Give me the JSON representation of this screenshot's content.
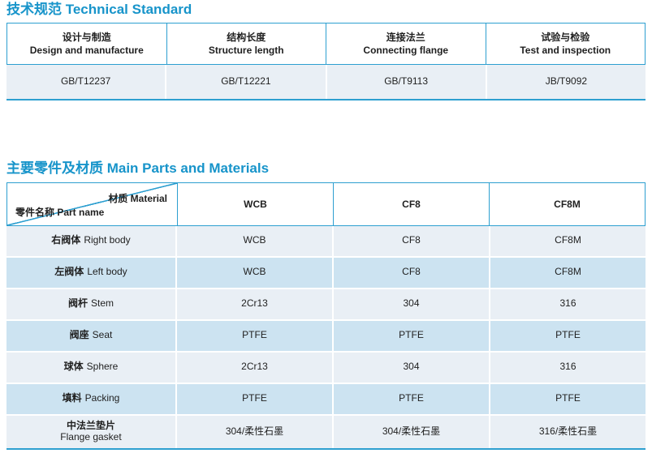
{
  "colors": {
    "accent": "#1794ca",
    "border": "#2d9fd0",
    "row_light": "#e9eff5",
    "row_blue": "#cce3f1"
  },
  "section1": {
    "title": "技术规范 Technical Standard",
    "table": {
      "headers": [
        {
          "zh": "设计与制造",
          "en": "Design and manufacture"
        },
        {
          "zh": "结构长度",
          "en": "Structure length"
        },
        {
          "zh": "连接法兰",
          "en": "Connecting flange"
        },
        {
          "zh": "试验与检验",
          "en": "Test and inspection"
        }
      ],
      "values": [
        "GB/T12237",
        "GB/T12221",
        "GB/T9113",
        "JB/T9092"
      ]
    }
  },
  "section2": {
    "title": "主要零件及材质 Main Parts and Materials",
    "table": {
      "corner": {
        "top_right": "材质 Material",
        "bottom_left": "零件名称 Part name"
      },
      "material_columns": [
        "WCB",
        "CF8",
        "CF8M"
      ],
      "rows": [
        {
          "zh": "右阀体",
          "en": "Right body",
          "values": [
            "WCB",
            "CF8",
            "CF8M"
          ]
        },
        {
          "zh": "左阀体",
          "en": "Left body",
          "values": [
            "WCB",
            "CF8",
            "CF8M"
          ]
        },
        {
          "zh": "阀杆",
          "en": "Stem",
          "values": [
            "2Cr13",
            "304",
            "316"
          ]
        },
        {
          "zh": "阀座",
          "en": "Seat",
          "values": [
            "PTFE",
            "PTFE",
            "PTFE"
          ]
        },
        {
          "zh": "球体",
          "en": "Sphere",
          "values": [
            "2Cr13",
            "304",
            "316"
          ]
        },
        {
          "zh": "填料",
          "en": "Packing",
          "values": [
            "PTFE",
            "PTFE",
            "PTFE"
          ]
        },
        {
          "zh": "中法兰垫片",
          "en": "Flange gasket",
          "values": [
            "304/柔性石墨",
            "304/柔性石墨",
            "316/柔性石墨"
          ]
        }
      ]
    }
  }
}
